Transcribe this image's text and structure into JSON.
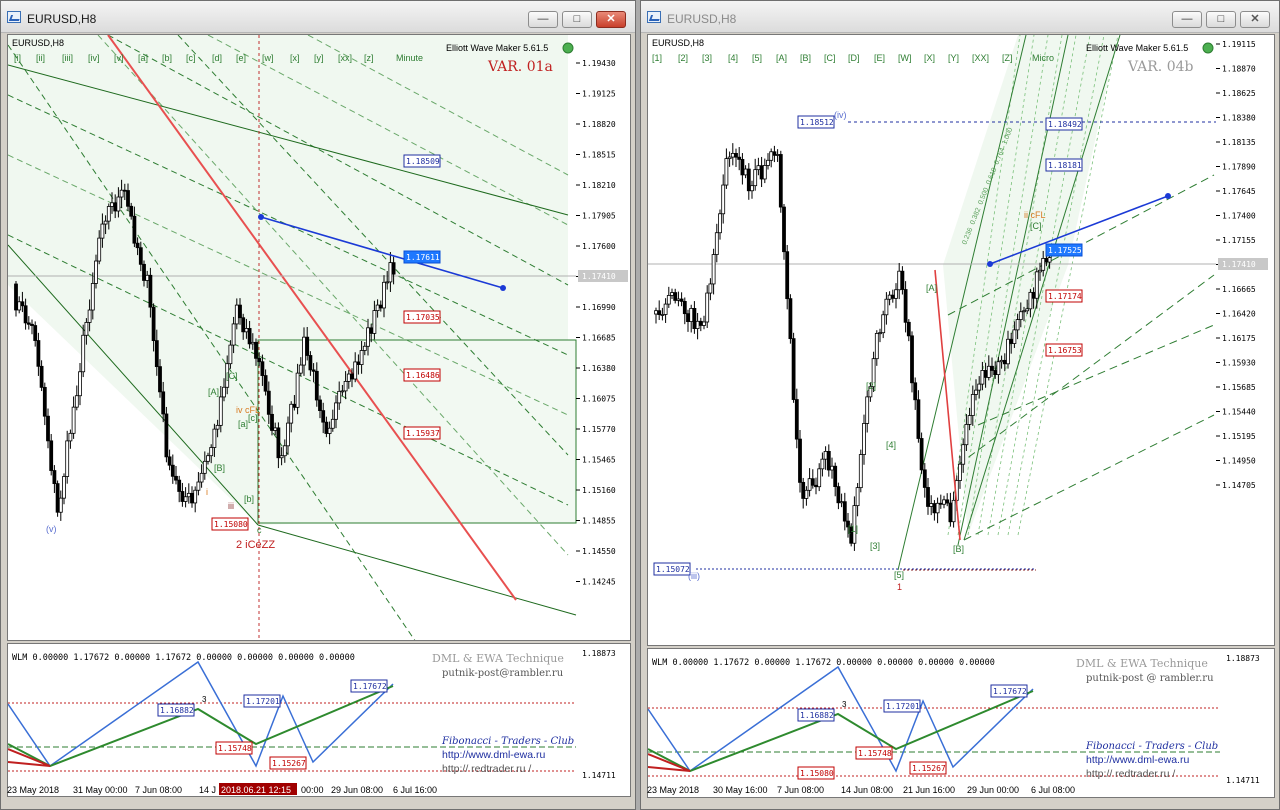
{
  "left_window": {
    "title": "EURUSD,H8",
    "min_label": "—",
    "max_label": "□",
    "close_label": "✕",
    "symbol_label": "EURUSD,H8",
    "indicator_name": "Elliott Wave Maker 5.61.5",
    "variant": "VAR. 01a",
    "wave_buttons": [
      "[i]",
      "[ii]",
      "[iii]",
      "[iv]",
      "[v]",
      "[a]",
      "[b]",
      "[c]",
      "[d]",
      "[e]",
      "[w]",
      "[x]",
      "[y]",
      "[xx]",
      "[z]",
      "Minute"
    ],
    "price_axis": [
      "1.19430",
      "1.19125",
      "1.18820",
      "1.18515",
      "1.18210",
      "1.17905",
      "1.17600",
      "1.17295",
      "1.16990",
      "1.16685",
      "1.16380",
      "1.16075",
      "1.15770",
      "1.15465",
      "1.15160",
      "1.14855",
      "1.14550",
      "1.14245"
    ],
    "current_price": "1.17410",
    "price_tags": [
      {
        "text": "1.18509",
        "style": "blue"
      },
      {
        "text": "1.17611",
        "style": "selected"
      },
      {
        "text": "1.17035",
        "style": "red"
      },
      {
        "text": "1.16486",
        "style": "red"
      },
      {
        "text": "1.15937",
        "style": "red"
      },
      {
        "text": "1.15080",
        "style": "red"
      }
    ],
    "wave_labels": [
      "(v)",
      "i",
      "iii",
      "[A]",
      "[B]",
      "[C]",
      "[a]",
      "[b]",
      "[c]",
      "iv cFL",
      "c",
      "2 iCeZZ"
    ],
    "sub": {
      "header": "WLM 0.00000 1.17672 0.00000 1.17672 0.00000 0.00000 0.00000 0.00000",
      "axis_top": "1.18873",
      "axis_bottom": "1.14711",
      "boxes": [
        "1.16882",
        "1.17201",
        "1.17672",
        "1.15748",
        "1.15267"
      ],
      "wave_num": "3",
      "tech_title": "DML & EWA Technique",
      "tech_email": "putnik-post@rambler.ru",
      "club": "Fibonacci  -  Traders  -  Club",
      "site1": "http://www.dml-ewa.ru",
      "site2": "http:// redtrader.ru /"
    },
    "dates": [
      "23 May 2018",
      "31 May 00:00",
      "7 Jun 08:00",
      "14 J",
      "2018.06.21 12:15",
      "00:00",
      "29 Jun 08:00",
      "6 Jul 16:00"
    ]
  },
  "right_window": {
    "title": "EURUSD,H8",
    "min_label": "—",
    "max_label": "□",
    "close_label": "✕",
    "symbol_label": "EURUSD,H8",
    "indicator_name": "Elliott Wave Maker 5.61.5",
    "variant": "VAR. 04b",
    "wave_buttons": [
      "[1]",
      "[2]",
      "[3]",
      "[4]",
      "[5]",
      "[A]",
      "[B]",
      "[C]",
      "[D]",
      "[E]",
      "[W]",
      "[X]",
      "[Y]",
      "[XX]",
      "[Z]",
      "Micro"
    ],
    "price_axis": [
      "1.19115",
      "1.18870",
      "1.18625",
      "1.18380",
      "1.18135",
      "1.17890",
      "1.17645",
      "1.17400",
      "1.17155",
      "1.16910",
      "1.16665",
      "1.16420",
      "1.16175",
      "1.15930",
      "1.15685",
      "1.15440",
      "1.15195",
      "1.14950",
      "1.14705"
    ],
    "current_price": "1.17410",
    "price_tags": [
      {
        "text": "1.18512",
        "style": "blue"
      },
      {
        "text": "1.18492",
        "style": "blue"
      },
      {
        "text": "1.18181",
        "style": "blue"
      },
      {
        "text": "1.17525",
        "style": "selected"
      },
      {
        "text": "1.17174",
        "style": "red"
      },
      {
        "text": "1.16753",
        "style": "red"
      },
      {
        "text": "1.15072",
        "style": "blue"
      }
    ],
    "wave_labels": [
      "(iv)",
      "(iii)",
      "[1]",
      "[2]",
      "[3]",
      "[4]",
      "[5]",
      "1",
      "[A]",
      "[B]",
      "[C]",
      "ii cFL"
    ],
    "fib_labels": [
      "0.236",
      "0.382",
      "0.500",
      "0.618",
      "0.764",
      "1.000"
    ],
    "sub": {
      "header": "WLM 0.00000 1.17672 0.00000 1.17672 0.00000 0.00000 0.00000 0.00000",
      "axis_top": "1.18873",
      "axis_bottom": "1.14711",
      "boxes": [
        "1.16882",
        "1.17201",
        "1.17672",
        "1.15748",
        "1.15267",
        "1.15080"
      ],
      "wave_num": "3",
      "tech_title": "DML & EWA Technique",
      "tech_email": "putnik-post @ rambler.ru",
      "club": "Fibonacci  -  Traders  -  Club",
      "site1": "http://www.dml-ewa.ru",
      "site2": "http:// redtrader.ru /"
    },
    "dates": [
      "23 May 2018",
      "30 May 16:00",
      "7 Jun 08:00",
      "14 Jun 08:00",
      "21 Jun 16:00",
      "29 Jun 00:00",
      "6 Jul 08:00"
    ]
  }
}
